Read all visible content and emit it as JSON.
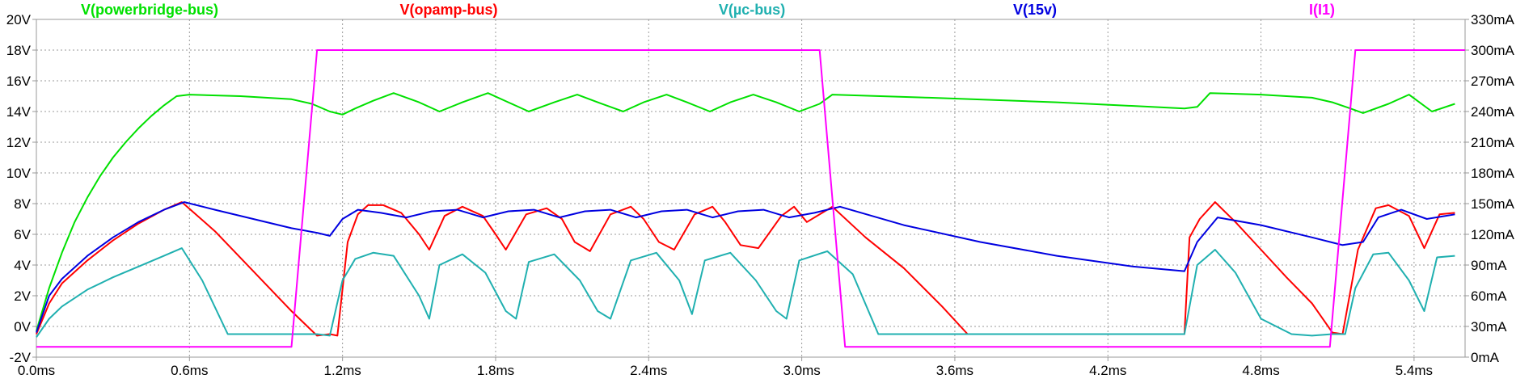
{
  "chart_data": {
    "type": "line",
    "title": "",
    "xlabel": "",
    "ylabel": "",
    "xlim": [
      0.0,
      5.6
    ],
    "ylim_left": [
      -2,
      20
    ],
    "ylim_right": [
      0,
      330
    ],
    "grid": true,
    "legend_placement": "top",
    "x_ticks": [
      "0.0ms",
      "0.6ms",
      "1.2ms",
      "1.8ms",
      "2.4ms",
      "3.0ms",
      "3.6ms",
      "4.2ms",
      "4.8ms",
      "5.4ms"
    ],
    "x_tick_values": [
      0.0,
      0.6,
      1.2,
      1.8,
      2.4,
      3.0,
      3.6,
      4.2,
      4.8,
      5.4
    ],
    "y_ticks_left": [
      "-2V",
      "0V",
      "2V",
      "4V",
      "6V",
      "8V",
      "10V",
      "12V",
      "14V",
      "16V",
      "18V",
      "20V"
    ],
    "y_tick_values_left": [
      -2,
      0,
      2,
      4,
      6,
      8,
      10,
      12,
      14,
      16,
      18,
      20
    ],
    "y_ticks_right": [
      "0mA",
      "30mA",
      "60mA",
      "90mA",
      "120mA",
      "150mA",
      "180mA",
      "210mA",
      "240mA",
      "270mA",
      "300mA",
      "330mA"
    ],
    "y_tick_values_right": [
      0,
      30,
      60,
      90,
      120,
      150,
      180,
      210,
      240,
      270,
      300,
      330
    ],
    "series": [
      {
        "name": "V(powerbridge-bus)",
        "axis": "left",
        "color": "#00e000",
        "x": [
          0.0,
          0.05,
          0.1,
          0.15,
          0.2,
          0.25,
          0.3,
          0.35,
          0.4,
          0.45,
          0.5,
          0.55,
          0.6,
          0.8,
          1.0,
          1.08,
          1.15,
          1.2,
          1.25,
          1.32,
          1.4,
          1.5,
          1.58,
          1.67,
          1.77,
          1.85,
          1.93,
          2.03,
          2.12,
          2.2,
          2.3,
          2.38,
          2.47,
          2.55,
          2.64,
          2.72,
          2.81,
          2.9,
          2.99,
          3.07,
          3.12,
          3.5,
          4.0,
          4.5,
          4.55,
          4.6,
          4.8,
          5.0,
          5.08,
          5.15,
          5.2,
          5.3,
          5.38,
          5.47,
          5.56
        ],
        "y": [
          -0.3,
          2.5,
          4.8,
          6.8,
          8.4,
          9.8,
          11.0,
          12.0,
          12.9,
          13.7,
          14.4,
          15.0,
          15.1,
          15.0,
          14.8,
          14.5,
          14.0,
          13.8,
          14.2,
          14.7,
          15.2,
          14.6,
          14.0,
          14.6,
          15.2,
          14.6,
          14.0,
          14.6,
          15.1,
          14.6,
          14.0,
          14.6,
          15.1,
          14.6,
          14.0,
          14.6,
          15.1,
          14.6,
          14.0,
          14.5,
          15.1,
          14.9,
          14.6,
          14.2,
          14.3,
          15.2,
          15.1,
          14.9,
          14.6,
          14.2,
          13.9,
          14.5,
          15.1,
          14.0,
          14.5
        ]
      },
      {
        "name": "V(opamp-bus)",
        "axis": "left",
        "color": "#ff0000",
        "x": [
          0.0,
          0.05,
          0.1,
          0.2,
          0.3,
          0.4,
          0.5,
          0.57,
          0.7,
          0.85,
          1.0,
          1.1,
          1.15,
          1.18,
          1.22,
          1.26,
          1.3,
          1.36,
          1.43,
          1.5,
          1.54,
          1.6,
          1.67,
          1.75,
          1.8,
          1.84,
          1.92,
          2.0,
          2.06,
          2.11,
          2.17,
          2.25,
          2.33,
          2.38,
          2.44,
          2.5,
          2.58,
          2.65,
          2.7,
          2.76,
          2.83,
          2.92,
          2.97,
          3.02,
          3.12,
          3.25,
          3.4,
          3.55,
          3.65,
          4.0,
          4.5,
          4.52,
          4.56,
          4.62,
          4.7,
          4.8,
          4.9,
          5.0,
          5.08,
          5.12,
          5.18,
          5.25,
          5.3,
          5.38,
          5.44,
          5.5,
          5.56
        ],
        "y": [
          -0.5,
          1.5,
          2.8,
          4.3,
          5.6,
          6.7,
          7.6,
          8.1,
          6.2,
          3.6,
          1.0,
          -0.6,
          -0.5,
          -0.6,
          5.5,
          7.3,
          7.9,
          7.9,
          7.4,
          6.0,
          5.0,
          7.2,
          7.8,
          7.2,
          6.0,
          5.0,
          7.3,
          7.7,
          7.0,
          5.5,
          4.9,
          7.3,
          7.8,
          7.0,
          5.5,
          5.0,
          7.3,
          7.8,
          6.8,
          5.3,
          5.1,
          7.2,
          7.8,
          6.8,
          7.8,
          5.8,
          3.8,
          1.3,
          -0.5,
          -0.5,
          -0.5,
          5.8,
          7.0,
          8.1,
          6.8,
          5.0,
          3.2,
          1.5,
          -0.4,
          -0.5,
          5.0,
          7.7,
          7.9,
          7.2,
          5.1,
          7.3,
          7.4
        ]
      },
      {
        "name": "V(µc-bus)",
        "axis": "left",
        "color": "#20b0b0",
        "x": [
          0.0,
          0.05,
          0.1,
          0.2,
          0.3,
          0.4,
          0.5,
          0.57,
          0.65,
          0.75,
          0.85,
          1.0,
          1.1,
          1.15,
          1.2,
          1.25,
          1.32,
          1.4,
          1.5,
          1.54,
          1.58,
          1.67,
          1.76,
          1.84,
          1.88,
          1.93,
          2.03,
          2.13,
          2.2,
          2.25,
          2.33,
          2.43,
          2.52,
          2.57,
          2.62,
          2.72,
          2.82,
          2.9,
          2.94,
          2.99,
          3.1,
          3.2,
          3.3,
          3.5,
          4.0,
          4.5,
          4.55,
          4.62,
          4.7,
          4.8,
          4.92,
          5.0,
          5.08,
          5.13,
          5.17,
          5.24,
          5.3,
          5.38,
          5.44,
          5.49,
          5.56
        ],
        "y": [
          -0.7,
          0.5,
          1.3,
          2.4,
          3.2,
          3.9,
          4.6,
          5.1,
          3.0,
          -0.5,
          -0.5,
          -0.5,
          -0.5,
          -0.6,
          3.0,
          4.4,
          4.8,
          4.6,
          2.0,
          0.5,
          4.0,
          4.7,
          3.5,
          1.0,
          0.5,
          4.2,
          4.7,
          3.0,
          1.0,
          0.5,
          4.3,
          4.8,
          3.0,
          0.8,
          4.3,
          4.8,
          3.0,
          1.0,
          0.5,
          4.3,
          4.9,
          3.4,
          -0.5,
          -0.5,
          -0.5,
          -0.5,
          4.0,
          5.0,
          3.5,
          0.5,
          -0.5,
          -0.6,
          -0.5,
          -0.5,
          2.5,
          4.7,
          4.8,
          3.0,
          1.0,
          4.5,
          4.6
        ]
      },
      {
        "name": "V(15v)",
        "axis": "left",
        "color": "#0000e0",
        "x": [
          0.0,
          0.05,
          0.1,
          0.2,
          0.3,
          0.4,
          0.5,
          0.58,
          0.7,
          0.85,
          1.0,
          1.1,
          1.15,
          1.2,
          1.26,
          1.35,
          1.45,
          1.55,
          1.65,
          1.75,
          1.85,
          1.95,
          2.05,
          2.15,
          2.25,
          2.35,
          2.45,
          2.55,
          2.65,
          2.75,
          2.85,
          2.95,
          3.05,
          3.15,
          3.4,
          3.7,
          4.0,
          4.3,
          4.5,
          4.55,
          4.63,
          4.8,
          5.0,
          5.12,
          5.2,
          5.26,
          5.35,
          5.45,
          5.56
        ],
        "y": [
          -0.4,
          2.0,
          3.1,
          4.6,
          5.8,
          6.8,
          7.6,
          8.1,
          7.6,
          7.0,
          6.4,
          6.1,
          5.9,
          7.0,
          7.6,
          7.4,
          7.1,
          7.5,
          7.6,
          7.1,
          7.5,
          7.6,
          7.1,
          7.5,
          7.6,
          7.1,
          7.5,
          7.6,
          7.1,
          7.5,
          7.6,
          7.1,
          7.4,
          7.8,
          6.6,
          5.5,
          4.6,
          3.9,
          3.6,
          5.5,
          7.1,
          6.6,
          5.8,
          5.3,
          5.5,
          7.1,
          7.6,
          7.0,
          7.3
        ]
      },
      {
        "name": "I(I1)",
        "axis": "right",
        "color": "#ff00ff",
        "x": [
          0.0,
          1.0,
          1.1,
          3.07,
          3.17,
          5.07,
          5.17,
          5.6
        ],
        "y": [
          10,
          10,
          300,
          300,
          10,
          10,
          300,
          300
        ]
      }
    ]
  }
}
